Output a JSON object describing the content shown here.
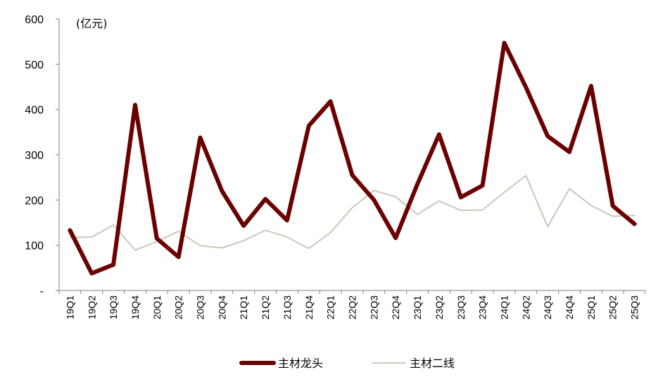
{
  "chart_data": {
    "type": "line",
    "unit_label": "(亿元)",
    "categories": [
      "19Q1",
      "19Q2",
      "19Q3",
      "19Q4",
      "20Q1",
      "20Q2",
      "20Q3",
      "20Q4",
      "21Q1",
      "21Q2",
      "21Q3",
      "21Q4",
      "22Q1",
      "22Q2",
      "22Q3",
      "22Q4",
      "23Q1",
      "23Q2",
      "23Q3",
      "23Q4",
      "24Q1",
      "24Q2",
      "24Q3",
      "24Q4",
      "25Q1",
      "25Q2",
      "25Q3"
    ],
    "y_ticks": [
      "-",
      "100",
      "200",
      "300",
      "400",
      "500",
      "600"
    ],
    "ylim": [
      0,
      600
    ],
    "grid": false,
    "legend_position": "bottom",
    "series": [
      {
        "name": "主材龙头",
        "color": "#6b0000",
        "values": [
          133,
          38,
          57,
          410,
          115,
          74,
          338,
          220,
          143,
          202,
          155,
          364,
          418,
          255,
          200,
          116,
          235,
          345,
          206,
          232,
          547,
          449,
          341,
          306,
          452,
          187,
          147
        ]
      },
      {
        "name": "主材二线",
        "color": "#c8c8bd",
        "values": [
          117,
          118,
          145,
          89,
          108,
          131,
          99,
          94,
          110,
          133,
          118,
          93,
          128,
          183,
          221,
          207,
          168,
          198,
          177,
          178,
          217,
          254,
          141,
          225,
          188,
          164,
          166
        ]
      }
    ]
  }
}
